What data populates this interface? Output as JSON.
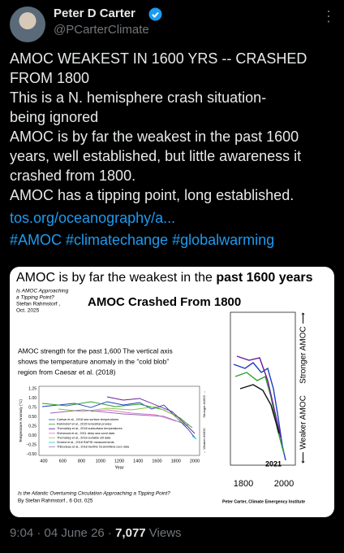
{
  "author": {
    "name": "Peter D Carter",
    "handle": "@PCarterClimate"
  },
  "tweet": {
    "lines": [
      "AMOC WEAKEST IN 1600 YRS -- CRASHED",
      "FROM 1800",
      "This is a N. hemisphere crash situation-",
      "being ignored",
      "AMOC is by far the weakest in the past 1600",
      "years, well established, but little awareness it",
      "crashed from 1800.",
      "AMOC has a tipping point, long established."
    ],
    "link": "tos.org/oceanography/a...",
    "hashtags": "#AMOC #climatechange #globalwarming"
  },
  "image": {
    "banner_text": "AMOC is by far the weakest in the ",
    "banner_bold": "past 1600 years",
    "source_note": [
      "Is AMOC Approaching",
      "a Tipping Point?",
      "Stefan Rahmstorf ,",
      "Oct. 2025"
    ],
    "title": "AMOC Crashed From 1800",
    "description": [
      "AMOC strength for the past 1,600 The vertical axis",
      "shows the temperature anomaly in the “cold blob”",
      "region from Caesar et al. (2018)"
    ],
    "left_chart": {
      "ylabel": "Temperature Anomaly (°C)",
      "yticks": [
        "1.25",
        "1.00",
        "0.75",
        "0.50",
        "0.25",
        "0.00",
        "−0.25",
        "−0.50"
      ],
      "xticks": [
        "400",
        "600",
        "800",
        "1000",
        "1200",
        "1400",
        "1600",
        "1800",
        "2000"
      ],
      "xlabel": "Year",
      "right_top": "Stronger AMOC →",
      "right_bottom": "← Weaker AMOC",
      "legend": [
        "Caesar et al., 2018 sea surface temperatures",
        "Rahmstorf et al., 2015 terrestrial proxies",
        "Thornalley et al., 2018 subsurface temperatures",
        "Sherwood et al., 2011 deep sea coral data",
        "Thornalley et al., 2018 sortable silt data",
        "Smeed et al., 2018 RAPID measurements",
        "Thibodeau et al., 2018 benthic foraminifera core data"
      ]
    },
    "right_chart": {
      "top_label": "Stronger AMOC ⟶",
      "bottom_label": "⟵ Weaker AMOC",
      "annotation": "2021",
      "xticks": [
        "1800",
        "2000"
      ]
    },
    "footer_left": [
      "Is the Atlantic Overturning Circulation Approaching a Tipping Point?",
      "By Stefan Rahmstorf , 6 Oct. 025"
    ],
    "footer_right": "Peter Carter, Climate Emergency Institute"
  },
  "meta": {
    "time": "9:04 · 04 June 26 · ",
    "views": "7,077",
    "views_label": " Views"
  }
}
